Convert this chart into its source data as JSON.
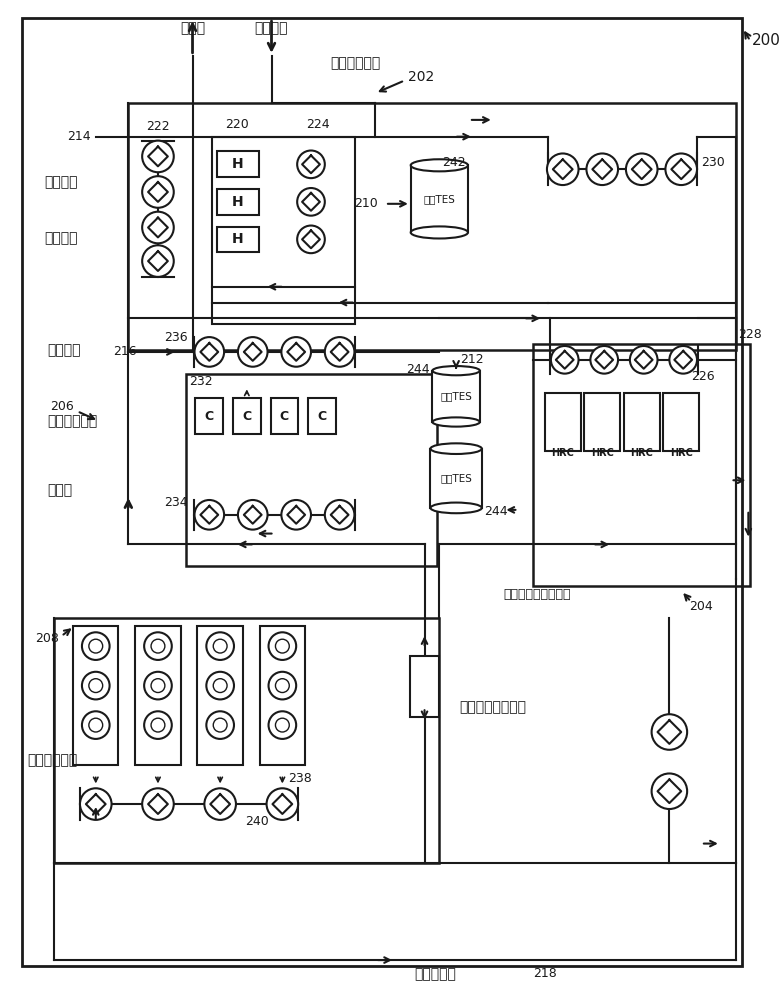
{
  "bg_color": "#ffffff",
  "line_color": "#1a1a1a",
  "figsize": [
    7.84,
    10.0
  ],
  "dpi": 100,
  "labels": {
    "to_building": "至建筑",
    "from_building": "来自建筑",
    "heater_sub": "加热器子机组",
    "hot_loop": "热水回路",
    "from_bld_left": "来自建筑",
    "cold_loop": "冷水回路",
    "chiller_sub": "制冷机子机组",
    "to_bld_left": "至建筑",
    "hrc_sub": "热回收制冷机子机组",
    "tower_sub": "冷却塔子机组",
    "hot_tes": "热的TES",
    "cold_tes": "冷的TES",
    "heat_ex": "热交换器（排热）",
    "cond_loop": "冷凝水回路",
    "n200": "200",
    "n202": "202",
    "n204": "204",
    "n206": "206",
    "n208": "208",
    "n210": "210",
    "n212": "212",
    "n214": "214",
    "n216": "216",
    "n218": "218",
    "n220": "220",
    "n222": "222",
    "n224": "224",
    "n226": "226",
    "n228": "228",
    "n230": "230",
    "n232": "232",
    "n234": "234",
    "n236": "236",
    "n238": "238",
    "n240": "240",
    "n242": "242",
    "n244": "244"
  }
}
